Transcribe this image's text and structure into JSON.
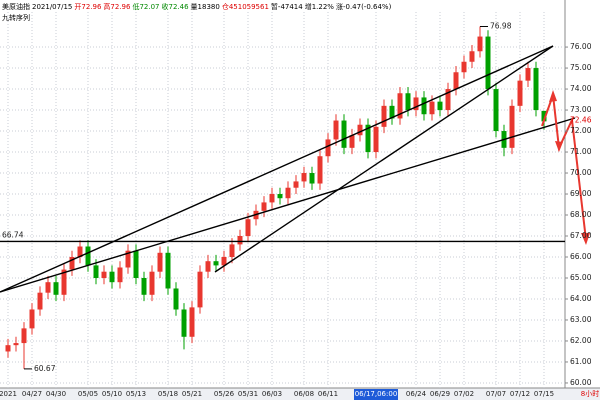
{
  "header": {
    "items": [
      "美原油指",
      "2021/07/15",
      "开72.96",
      "高72.96",
      "低72.07",
      "收72.46",
      "量18380",
      "仓451059561",
      "暂-47414",
      "增1.22%",
      "涨-0.47(-0.64%)"
    ],
    "indicator": "九转序列"
  },
  "chart_data": {
    "type": "candlestick",
    "period": "8小时",
    "categories": [
      "2021",
      null,
      null,
      "04/27",
      null,
      null,
      "04/30",
      null,
      null,
      null,
      "05/05",
      null,
      null,
      "05/10",
      null,
      null,
      "05/13",
      null,
      null,
      null,
      "05/18",
      null,
      null,
      "05/21",
      null,
      null,
      null,
      "05/26",
      null,
      null,
      "05/31",
      null,
      null,
      "06/03",
      null,
      null,
      null,
      "06/08",
      null,
      null,
      "06/11",
      null,
      null,
      null,
      null,
      null,
      "06/17,06:00",
      null,
      null,
      null,
      null,
      "06/24",
      null,
      null,
      "06/29",
      null,
      null,
      "07/02",
      null,
      null,
      null,
      "07/07",
      null,
      null,
      "07/12",
      null,
      null,
      "07/15"
    ],
    "open": [
      61.5,
      61.8,
      61.9,
      62.6,
      63.5,
      64.3,
      64.8,
      64.2,
      65.4,
      66.0,
      66.5,
      65.6,
      65.0,
      65.3,
      64.8,
      65.5,
      66.3,
      65.0,
      64.2,
      65.3,
      66.2,
      64.5,
      63.5,
      62.2,
      63.6,
      65.3,
      65.8,
      65.6,
      66.0,
      66.6,
      67.0,
      67.8,
      68.2,
      68.6,
      69.0,
      68.8,
      69.3,
      69.6,
      70.0,
      69.5,
      70.8,
      71.6,
      72.5,
      71.2,
      71.8,
      72.3,
      71.0,
      72.2,
      73.2,
      72.6,
      73.8,
      73.0,
      73.6,
      72.8,
      73.4,
      73.0,
      74.0,
      74.8,
      75.3,
      75.8,
      76.5,
      74.0,
      72.0,
      71.2,
      73.2,
      74.4,
      75.0,
      72.96
    ],
    "high": [
      62.1,
      62.2,
      62.9,
      63.8,
      64.6,
      65.1,
      65.1,
      65.7,
      66.3,
      66.8,
      66.8,
      65.9,
      65.6,
      65.6,
      65.8,
      66.6,
      66.6,
      65.3,
      65.6,
      66.5,
      66.5,
      64.8,
      63.8,
      63.9,
      65.6,
      66.1,
      66.1,
      66.3,
      66.9,
      67.3,
      68.1,
      68.5,
      68.9,
      69.3,
      69.3,
      69.6,
      69.9,
      70.3,
      70.3,
      71.1,
      71.9,
      72.8,
      72.8,
      72.1,
      72.6,
      72.6,
      72.5,
      73.5,
      73.5,
      74.1,
      74.1,
      73.9,
      73.9,
      73.7,
      73.7,
      74.3,
      75.1,
      75.6,
      76.1,
      76.98,
      76.8,
      74.3,
      72.3,
      73.5,
      74.7,
      75.3,
      75.3,
      72.96
    ],
    "low": [
      61.2,
      61.5,
      60.67,
      62.3,
      63.2,
      64.0,
      63.9,
      63.9,
      65.1,
      65.7,
      65.3,
      64.7,
      64.7,
      64.5,
      64.5,
      65.2,
      64.7,
      63.9,
      63.9,
      65.0,
      64.2,
      63.2,
      61.6,
      61.9,
      63.3,
      65.0,
      65.3,
      65.3,
      65.7,
      66.3,
      66.7,
      67.5,
      67.9,
      68.3,
      68.5,
      68.5,
      69.0,
      69.3,
      69.2,
      69.2,
      70.5,
      71.3,
      70.9,
      70.9,
      71.5,
      70.7,
      70.7,
      71.9,
      72.3,
      72.3,
      72.7,
      72.7,
      72.5,
      72.5,
      72.7,
      72.7,
      73.7,
      74.5,
      75.0,
      75.5,
      73.7,
      71.7,
      70.8,
      70.9,
      72.9,
      74.1,
      72.7,
      72.07
    ],
    "close": [
      61.8,
      61.9,
      62.6,
      63.5,
      64.3,
      64.8,
      64.2,
      65.4,
      66.0,
      66.5,
      65.6,
      65.0,
      65.3,
      64.8,
      65.5,
      66.3,
      65.0,
      64.2,
      65.3,
      66.2,
      64.5,
      63.5,
      62.2,
      63.6,
      65.3,
      65.8,
      65.6,
      66.0,
      66.6,
      67.0,
      67.8,
      68.2,
      68.6,
      69.0,
      68.8,
      69.3,
      69.6,
      70.0,
      69.5,
      70.8,
      71.6,
      72.5,
      71.2,
      71.8,
      72.3,
      71.0,
      72.2,
      73.2,
      72.6,
      73.8,
      73.0,
      73.6,
      72.8,
      73.4,
      73.0,
      74.0,
      74.8,
      75.3,
      75.8,
      76.5,
      74.0,
      72.0,
      71.2,
      73.2,
      74.4,
      75.0,
      73.0,
      72.46
    ],
    "up_color": "#e8372f",
    "down_color": "#00a000",
    "ylim": [
      59.76,
      77.67
    ],
    "yticks": [
      {
        "value": 60,
        "label": "60.00"
      },
      {
        "value": 61,
        "label": "61.00"
      },
      {
        "value": 62,
        "label": "62.00"
      },
      {
        "value": 63,
        "label": "63.00"
      },
      {
        "value": 64,
        "label": "64.00"
      },
      {
        "value": 65,
        "label": "65.00"
      },
      {
        "value": 66,
        "label": "66.00"
      },
      {
        "value": 67,
        "label": "67.00"
      },
      {
        "value": 68,
        "label": "68.00"
      },
      {
        "value": 69,
        "label": "69.00"
      },
      {
        "value": 70,
        "label": "70.00"
      },
      {
        "value": 71,
        "label": "71.00"
      },
      {
        "value": 72,
        "label": "72.00"
      },
      {
        "value": 73,
        "label": "73.00"
      },
      {
        "value": 74,
        "label": "74.00"
      },
      {
        "value": 75,
        "label": "75.00"
      },
      {
        "value": 76,
        "label": "76.00"
      }
    ],
    "grid": true,
    "annotations": [
      {
        "label": "76.98",
        "value": 76.98,
        "index": 59
      },
      {
        "label": "60.67",
        "value": 60.67,
        "index": 2
      },
      {
        "label": "66.74",
        "value": 66.74
      },
      {
        "label": "72.46",
        "value": 72.46
      }
    ]
  }
}
